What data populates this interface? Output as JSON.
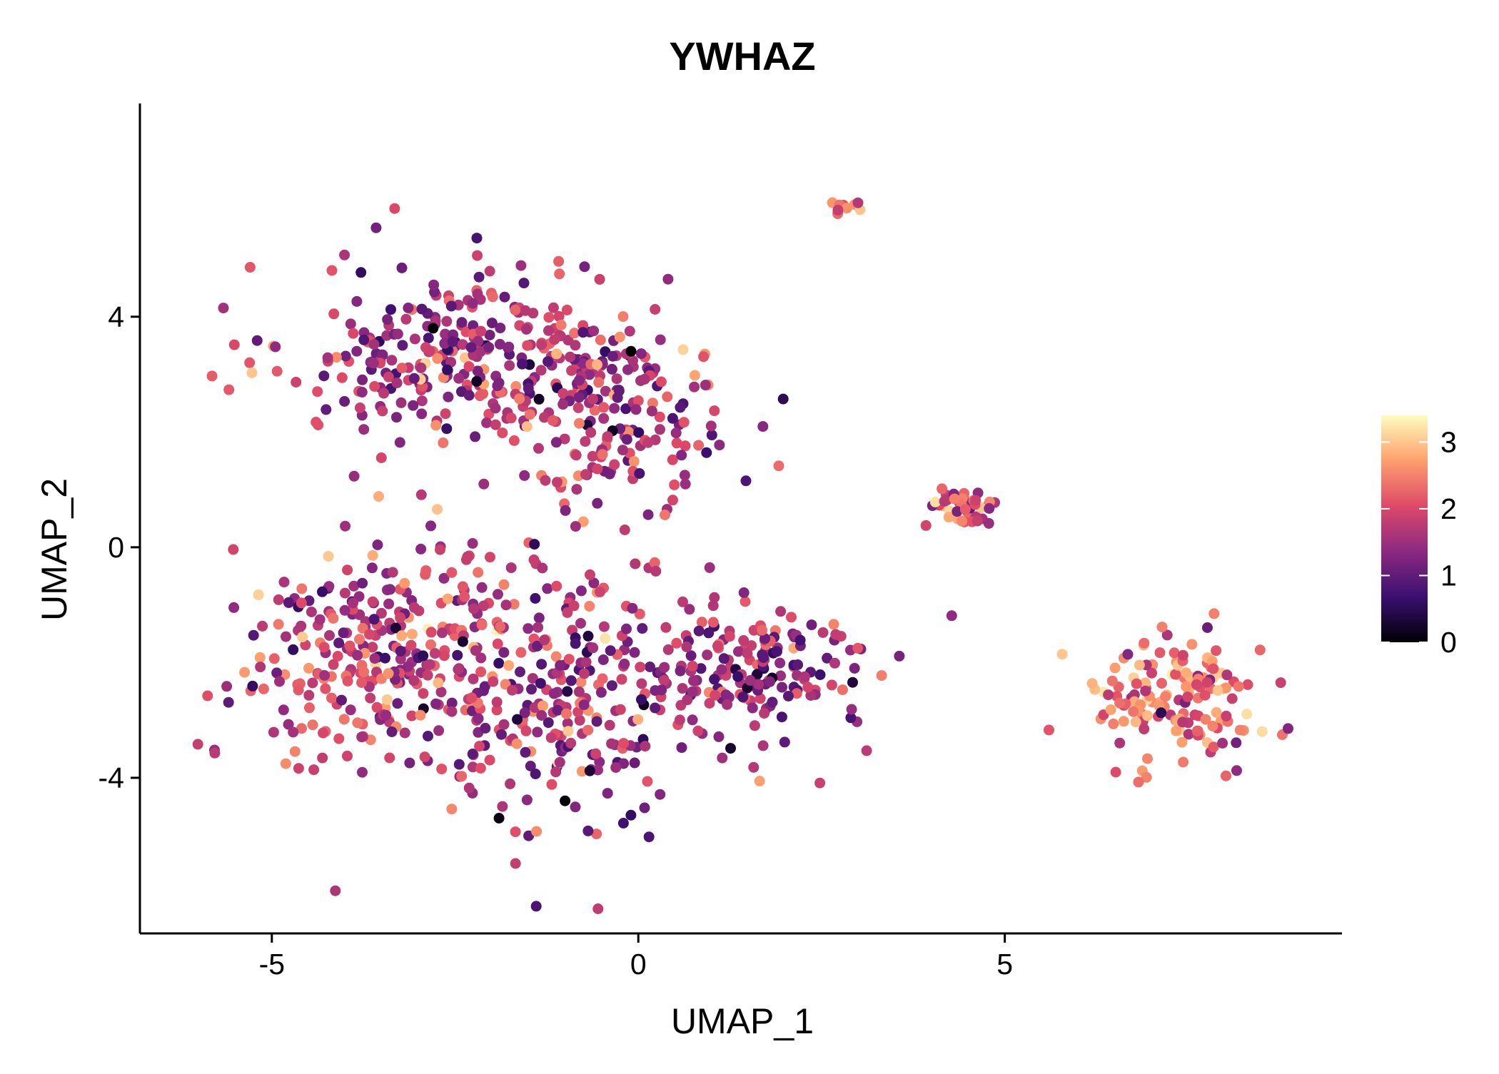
{
  "chart_data": {
    "type": "scatter",
    "title": "YWHAZ",
    "xlabel": "UMAP_1",
    "ylabel": "UMAP_2",
    "xlim": [
      -6.8,
      9.6
    ],
    "ylim": [
      -6.7,
      7.7
    ],
    "x_ticks": [
      -5,
      0,
      5
    ],
    "x_tick_labels": [
      "-5",
      "0",
      "5"
    ],
    "y_ticks": [
      -4,
      0,
      4
    ],
    "y_tick_labels": [
      "-4",
      "0",
      "4"
    ],
    "grid": false,
    "legend": {
      "position": "right",
      "type": "colorbar",
      "min": 0,
      "max": 3.4,
      "ticks": [
        0,
        1,
        2,
        3
      ],
      "tick_labels": [
        "0",
        "1",
        "2",
        "3"
      ],
      "colormap": [
        "#000004",
        "#3b0f70",
        "#8c2981",
        "#de4968",
        "#fe9f6d",
        "#fcfdbf"
      ]
    },
    "clusters": [
      {
        "name": "upper-left-lobe",
        "center": [
          -2.2,
          3.3
        ],
        "spread": [
          1.6,
          1.0
        ],
        "count": 320,
        "mean_expr": 1.6
      },
      {
        "name": "upper-mid-lobe",
        "center": [
          -0.2,
          2.2
        ],
        "spread": [
          0.9,
          1.1
        ],
        "count": 150,
        "mean_expr": 1.7
      },
      {
        "name": "lower-left-lobe",
        "center": [
          -3.4,
          -1.8
        ],
        "spread": [
          1.2,
          1.3
        ],
        "count": 320,
        "mean_expr": 1.8
      },
      {
        "name": "lower-center-lobe",
        "center": [
          -1.0,
          -2.6
        ],
        "spread": [
          1.0,
          1.5
        ],
        "count": 230,
        "mean_expr": 1.7
      },
      {
        "name": "right-ring",
        "center": [
          1.5,
          -2.2
        ],
        "spread": [
          1.1,
          0.9
        ],
        "count": 180,
        "mean_expr": 1.5
      },
      {
        "name": "top-tiny-cluster",
        "center": [
          2.8,
          5.9
        ],
        "spread": [
          0.12,
          0.1
        ],
        "count": 10,
        "mean_expr": 2.1
      },
      {
        "name": "mid-right-cluster",
        "center": [
          4.4,
          0.7
        ],
        "spread": [
          0.3,
          0.25
        ],
        "count": 45,
        "mean_expr": 2.0
      },
      {
        "name": "far-right-cluster",
        "center": [
          7.3,
          -2.6
        ],
        "spread": [
          0.7,
          0.7
        ],
        "count": 150,
        "mean_expr": 2.3
      }
    ],
    "notable_points": [
      {
        "x": -2.8,
        "y": 3.8,
        "value": 0
      },
      {
        "x": -0.1,
        "y": 3.4,
        "value": 0
      },
      {
        "x": -1.0,
        "y": -4.4,
        "value": 0
      },
      {
        "x": -1.9,
        "y": -4.7,
        "value": 0.1
      }
    ]
  }
}
